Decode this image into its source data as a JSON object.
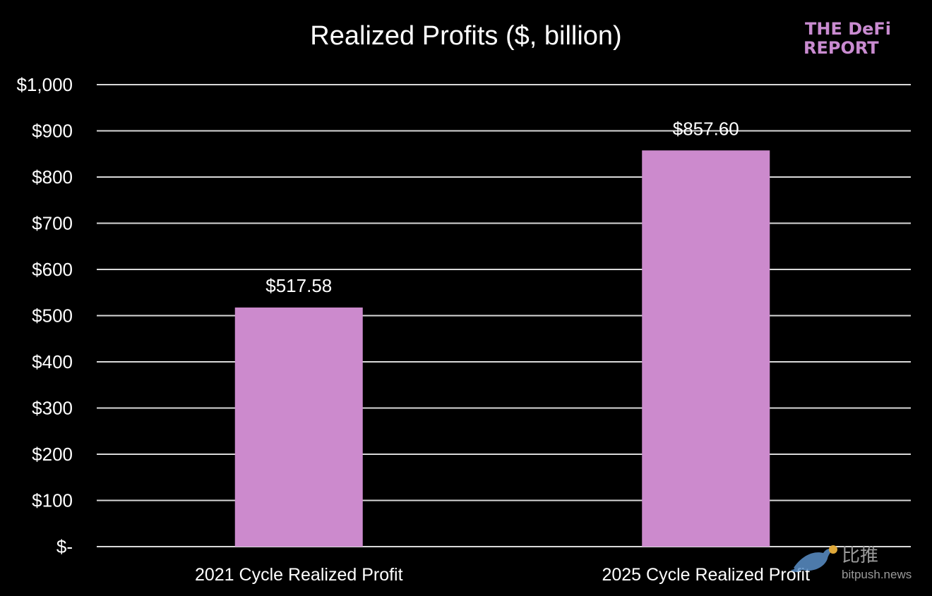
{
  "chart_data": {
    "type": "bar",
    "title": "Realized Profits ($, billion)",
    "categories": [
      "2021 Cycle Realized Profit",
      "2025 Cycle Realized Profit"
    ],
    "values": [
      517.58,
      857.6
    ],
    "data_labels": [
      "$517.58",
      "$857.60"
    ],
    "ylim": [
      0,
      1000
    ],
    "yticks": [
      0,
      100,
      200,
      300,
      400,
      500,
      600,
      700,
      800,
      900,
      1000
    ],
    "ytick_labels": [
      "$-",
      "$100",
      "$200",
      "$300",
      "$400",
      "$500",
      "$600",
      "$700",
      "$800",
      "$900",
      "$1,000"
    ],
    "grid": true,
    "legend": "none",
    "colors": {
      "bar": "#CC8ACD",
      "background": "#000000",
      "grid": "#D9D9D9",
      "text": "#FFFFFF"
    }
  },
  "logo": {
    "line1": "THE DeFi",
    "line2": "REPORT",
    "color": "#C98BD0"
  },
  "watermark": {
    "brand": "比推",
    "url": "bitpush.news"
  }
}
